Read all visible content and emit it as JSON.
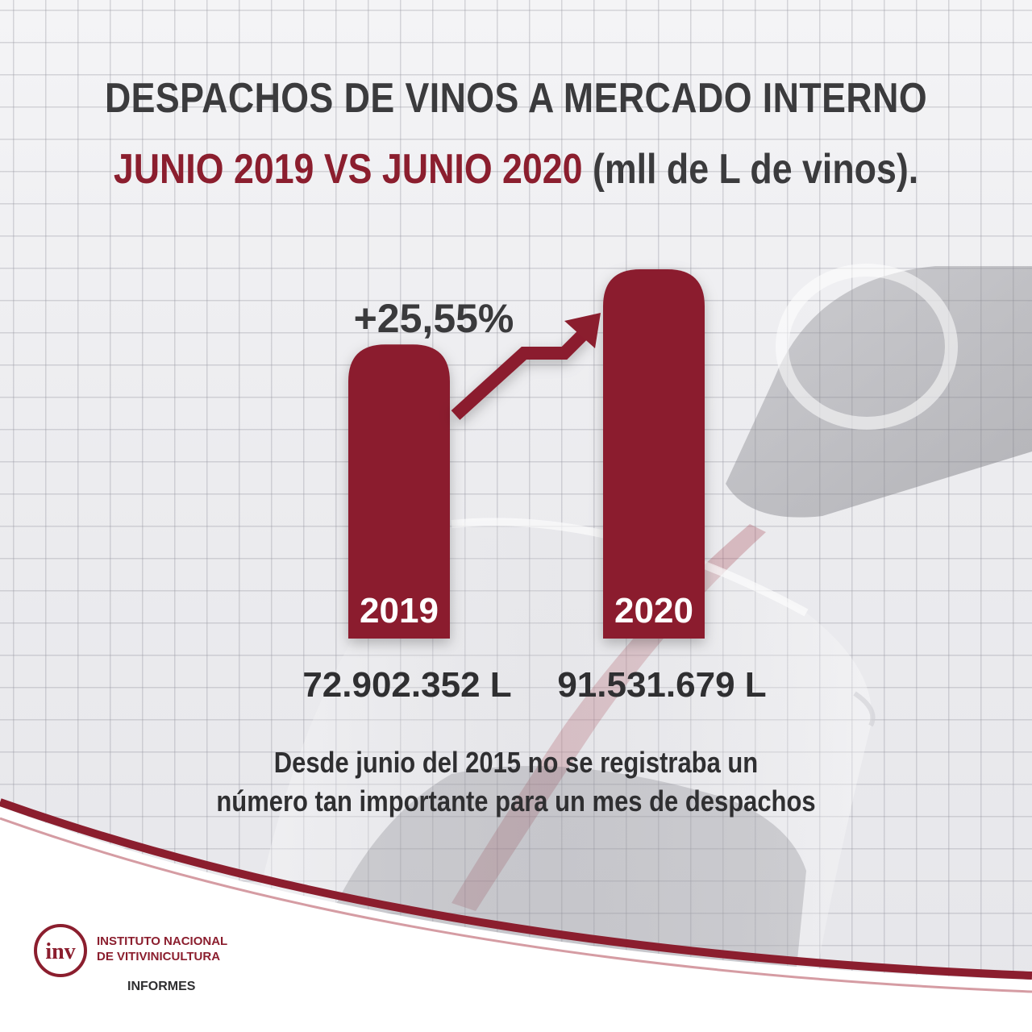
{
  "title": {
    "line1": "DESPACHOS DE VINOS  A MERCADO INTERNO",
    "line2_highlight": "JUNIO 2019 VS JUNIO 2020",
    "line2_rest": " (mll de L de vinos)."
  },
  "chart_data": {
    "type": "bar",
    "categories": [
      "2019",
      "2020"
    ],
    "values": [
      72902352,
      91531679
    ],
    "value_labels": [
      "72.902.352 L",
      "91.531.679 L"
    ],
    "change_label": "+25,55%",
    "bar_color": "#8b1e2e",
    "ylim": [
      0,
      91531679
    ],
    "grid": false,
    "legend": "none"
  },
  "note": {
    "line1": "Desde junio del 2015 no se registraba un",
    "line2": "número tan importante para un mes de despachos"
  },
  "logo": {
    "mark": "inv",
    "name_line1": "INSTITUTO NACIONAL",
    "name_line2": "DE VITIVINICULTURA",
    "section": "INFORMES"
  },
  "colors": {
    "brand": "#8b1e2e",
    "text_dark": "#3b3b3d"
  }
}
